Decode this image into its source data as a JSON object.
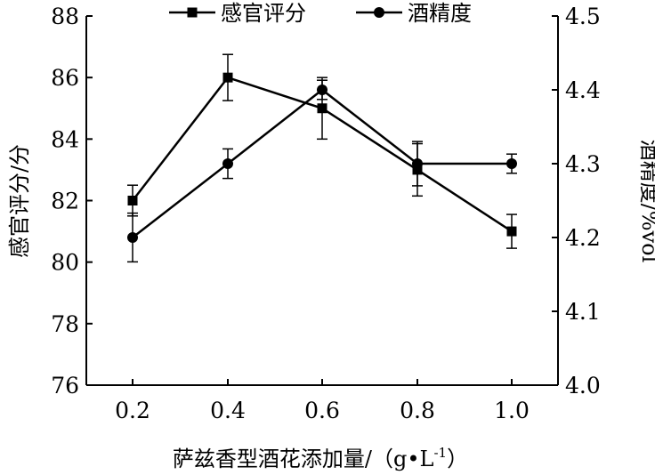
{
  "chart_data": {
    "type": "line",
    "title": "",
    "xlabel": "萨兹香型酒花添加量/（g•L",
    "xlabel_sup": "-1",
    "xlabel_tail": "）",
    "ylabel_left": "感官评分/分",
    "ylabel_right": "酒精度/%vol",
    "categories": [
      "0.2",
      "0.4",
      "0.6",
      "0.8",
      "1.0"
    ],
    "y_left": {
      "min": 76,
      "max": 88,
      "ticks": [
        "76",
        "78",
        "80",
        "82",
        "84",
        "86",
        "88"
      ]
    },
    "y_right": {
      "min": 4.0,
      "max": 4.5,
      "ticks": [
        "4.0",
        "4.1",
        "4.2",
        "4.3",
        "4.4",
        "4.5"
      ]
    },
    "grid": false,
    "legend_position": "top",
    "series": [
      {
        "name": "感官评分",
        "axis": "left",
        "marker": "square",
        "values": [
          82.0,
          86.0,
          85.0,
          83.0,
          81.0
        ],
        "errors": [
          0.5,
          0.75,
          1.0,
          0.85,
          0.55
        ]
      },
      {
        "name": "酒精度",
        "axis": "right",
        "marker": "circle",
        "values": [
          4.2,
          4.3,
          4.4,
          4.3,
          4.3
        ],
        "errors": [
          0.033,
          0.02,
          0.013,
          0.03,
          0.013
        ]
      }
    ],
    "colors": {
      "line": "#000000"
    }
  }
}
